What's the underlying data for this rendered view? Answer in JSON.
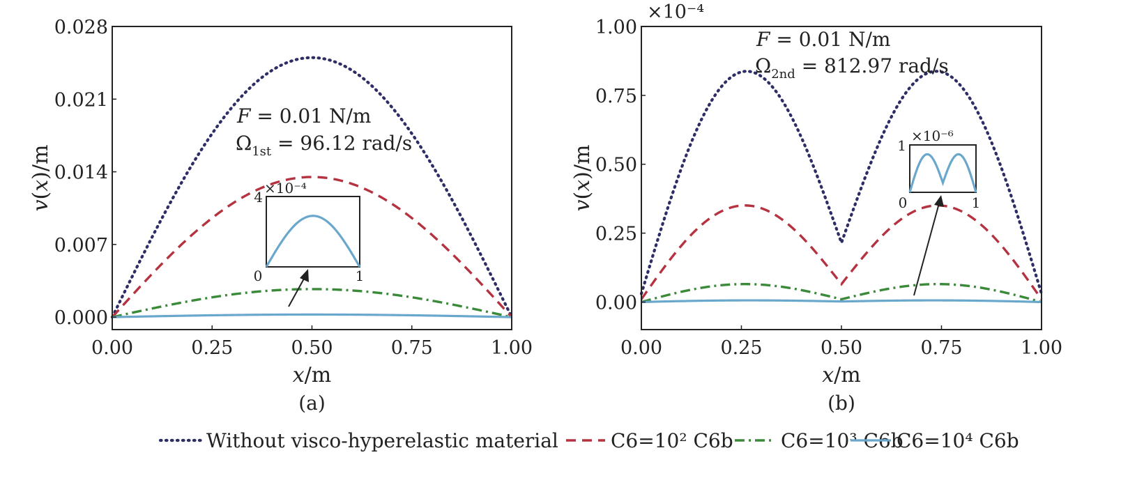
{
  "chart_data": [
    {
      "type": "line",
      "panel_label": "(a)",
      "xlabel": "x/m",
      "ylabel": "v(x)/m",
      "xlim": [
        0,
        1
      ],
      "ylim": [
        -0.0012,
        0.028
      ],
      "x_ticks": [
        "0.00",
        "0.25",
        "0.50",
        "0.75",
        "1.00"
      ],
      "y_ticks": [
        "0.000",
        "0.007",
        "0.014",
        "0.021",
        "0.028"
      ],
      "annotation_line1": "F = 0.01 N/m",
      "annotation_line2": "Ω1st = 96.12 rad/s",
      "series": [
        {
          "x": [
            0,
            0.5,
            1
          ],
          "peak": 0.025,
          "shape": "mode1"
        },
        {
          "x": [
            0,
            0.5,
            1
          ],
          "peak": 0.0135,
          "shape": "mode1"
        },
        {
          "x": [
            0,
            0.5,
            1
          ],
          "peak": 0.0027,
          "shape": "mode1"
        },
        {
          "x": [
            0,
            0.5,
            1
          ],
          "peak": 0.00025,
          "shape": "mode1"
        }
      ],
      "inset": {
        "xlim": [
          0,
          1
        ],
        "ylim": [
          0,
          4
        ],
        "x_ticks": [
          "0",
          "1"
        ],
        "y_ticks": [
          "4"
        ],
        "y_exponent": "×10⁻⁴",
        "peak": 2.9,
        "shape": "mode1"
      }
    },
    {
      "type": "line",
      "panel_label": "(b)",
      "xlabel": "x/m",
      "ylabel": "v(x)/m",
      "y_exponent": "×10⁻⁴",
      "xlim": [
        0,
        1
      ],
      "ylim": [
        -0.1,
        1.0
      ],
      "x_ticks": [
        "0.00",
        "0.25",
        "0.50",
        "0.75",
        "1.00"
      ],
      "y_ticks": [
        "0.00",
        "0.25",
        "0.50",
        "0.75",
        "1.00"
      ],
      "annotation_line1": "F = 0.01 N/m",
      "annotation_line2": "Ω2nd = 812.97 rad/s",
      "series": [
        {
          "x": [
            0,
            0.25,
            0.5,
            0.75,
            1
          ],
          "y": [
            0.03,
            0.835,
            0.215,
            0.835,
            0.03
          ],
          "shape": "mode2"
        },
        {
          "x": [
            0,
            0.25,
            0.5,
            0.75,
            1
          ],
          "y": [
            0.01,
            0.35,
            0.065,
            0.35,
            0.01
          ],
          "shape": "mode2"
        },
        {
          "x": [
            0,
            0.25,
            0.5,
            0.75,
            1
          ],
          "y": [
            0.0,
            0.065,
            0.01,
            0.065,
            0.0
          ],
          "shape": "mode2"
        },
        {
          "x": [
            0,
            0.25,
            0.5,
            0.75,
            1
          ],
          "y": [
            0.0,
            0.006,
            0.002,
            0.006,
            0.0
          ],
          "shape": "mode2"
        }
      ],
      "inset": {
        "xlim": [
          0,
          1
        ],
        "ylim": [
          0,
          1
        ],
        "x_ticks": [
          "0",
          "1"
        ],
        "y_ticks": [
          "1"
        ],
        "y_exponent": "×10⁻⁶",
        "peak": 0.8,
        "dip": 0.2,
        "shape": "mode2"
      }
    }
  ],
  "legend": {
    "placement": "bottom-center",
    "entries": [
      {
        "label": "Without visco-hyperelastic material",
        "color": "#2e2d66",
        "style": "dotted"
      },
      {
        "label": "C6=10² C6b",
        "color": "#b53340",
        "style": "dashed"
      },
      {
        "label": "C6=10³ C6b",
        "color": "#3b8a3a",
        "style": "dashdot"
      },
      {
        "label": "C6=10⁴ C6b",
        "color": "#6aa7cc",
        "style": "solid"
      }
    ]
  },
  "colors": {
    "dotted": "#2e2d66",
    "dashed": "#b53340",
    "dashdot": "#3b8a3a",
    "solid": "#6aa7cc",
    "axis": "#222222"
  }
}
